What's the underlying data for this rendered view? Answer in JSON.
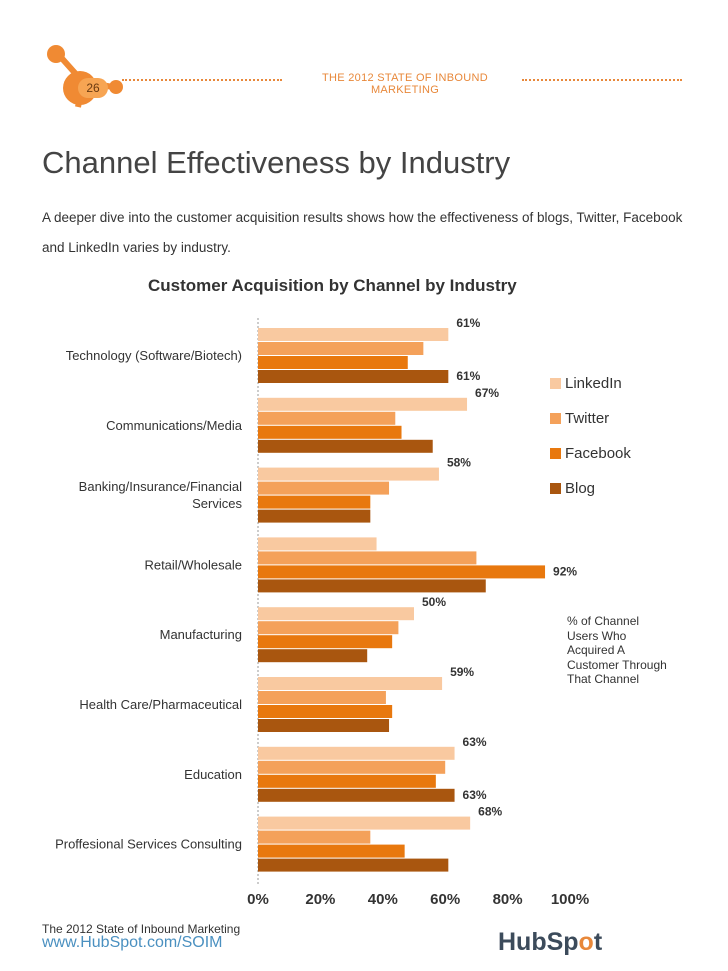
{
  "header": {
    "page_number": "26",
    "title": "THE 2012 STATE OF INBOUND MARKETING"
  },
  "page_title": "Channel Effectiveness by Industry",
  "intro": "A deeper dive into the customer acquisition results shows how the effectiveness of blogs, Twitter, Facebook and LinkedIn varies by industry.",
  "chart_data": {
    "type": "bar",
    "orientation": "horizontal",
    "title": "Customer Acquisition by Channel by Industry",
    "categories": [
      [
        "Technology (Software/Biotech)"
      ],
      [
        "Communications/Media"
      ],
      [
        "Banking/Insurance/Financial",
        "Services"
      ],
      [
        "Retail/Wholesale"
      ],
      [
        "Manufacturing"
      ],
      [
        "Health Care/Pharmaceutical"
      ],
      [
        "Education"
      ],
      [
        "Proffesional Services Consulting"
      ]
    ],
    "series": [
      {
        "name": "LinkedIn",
        "color": "#f9c9a0",
        "values": [
          61,
          67,
          58,
          38,
          50,
          59,
          63,
          68
        ]
      },
      {
        "name": "Twitter",
        "color": "#f4a15a",
        "values": [
          53,
          44,
          42,
          70,
          45,
          41,
          60,
          36
        ]
      },
      {
        "name": "Facebook",
        "color": "#e8780e",
        "values": [
          48,
          46,
          36,
          92,
          43,
          43,
          57,
          47
        ]
      },
      {
        "name": "Blog",
        "color": "#a9560f",
        "values": [
          61,
          56,
          36,
          73,
          35,
          42,
          63,
          61
        ]
      }
    ],
    "data_labels": [
      {
        "category": 0,
        "series": 0,
        "text": "61%"
      },
      {
        "category": 0,
        "series": 3,
        "text": "61%"
      },
      {
        "category": 1,
        "series": 0,
        "text": "67%"
      },
      {
        "category": 2,
        "series": 0,
        "text": "58%"
      },
      {
        "category": 3,
        "series": 2,
        "text": "92%"
      },
      {
        "category": 4,
        "series": 0,
        "text": "50%"
      },
      {
        "category": 5,
        "series": 0,
        "text": "59%"
      },
      {
        "category": 6,
        "series": 0,
        "text": "63%"
      },
      {
        "category": 6,
        "series": 3,
        "text": "63%"
      },
      {
        "category": 7,
        "series": 0,
        "text": "68%"
      }
    ],
    "x_ticks": [
      "0%",
      "20%",
      "40%",
      "60%",
      "80%",
      "100%"
    ],
    "xlim": [
      0,
      100
    ],
    "legend_position": "right",
    "note": "% of Channel Users Who Acquired A Customer Through That Channel"
  },
  "footer": {
    "title": "The 2012 State of Inbound Marketing",
    "url": "www.HubSpot.com/SOIM",
    "brand_main_1": "HubSp",
    "brand_accent": "o",
    "brand_main_2": "t"
  }
}
